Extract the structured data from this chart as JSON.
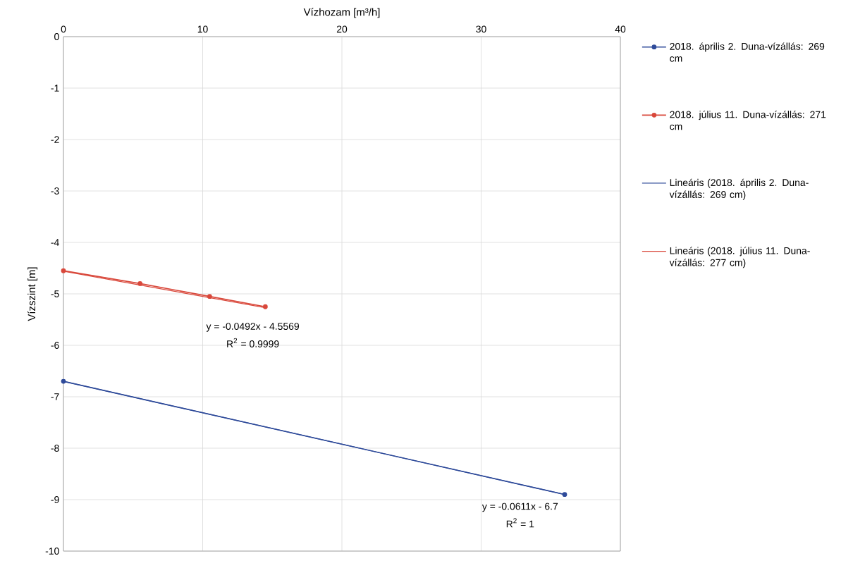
{
  "chart_data": {
    "type": "line",
    "xlabel": "Vízhozam [m³/h]",
    "ylabel": "Vízszint [m]",
    "xlim": [
      0,
      40
    ],
    "xticks": [
      0,
      10,
      20,
      30,
      40
    ],
    "ylim": [
      -10,
      0
    ],
    "yticks": [
      0,
      -1,
      -2,
      -3,
      -4,
      -5,
      -6,
      -7,
      -8,
      -9,
      -10
    ],
    "grid": true,
    "legend": "right",
    "marker": "circle",
    "line_style": "solid",
    "series": [
      {
        "name": "2018. április 2. Duna-vízállás: 269 cm",
        "color": "#2f4b9a",
        "x": [
          0,
          36
        ],
        "values": [
          -6.7,
          -8.9
        ]
      },
      {
        "name": "2018. július 11. Duna-vízállás: 271 cm",
        "color": "#d9483b",
        "x": [
          0,
          5.5,
          10.5,
          14.5
        ],
        "values": [
          -4.55,
          -4.8,
          -5.05,
          -5.25
        ]
      },
      {
        "name": "Lineáris (2018. április 2. Duna-vízállás: 269 cm)",
        "type": "line",
        "marker": "none",
        "color": "#2f4b9a",
        "x": [
          0,
          36
        ],
        "values": [
          -6.7,
          -8.9
        ]
      },
      {
        "name": "Lineáris (2018. július 11. Duna-vízállás: 277 cm)",
        "type": "line",
        "marker": "none",
        "color": "#d9483b",
        "x": [
          0,
          14.5
        ],
        "values": [
          -4.56,
          -5.27
        ]
      }
    ],
    "annotations": [
      "y = -0.0492x - 4.5569",
      "R$^{2}$ = 0.9999",
      "y = -0.0611x - 6.7",
      "R$^{2}$ = 1"
    ]
  }
}
